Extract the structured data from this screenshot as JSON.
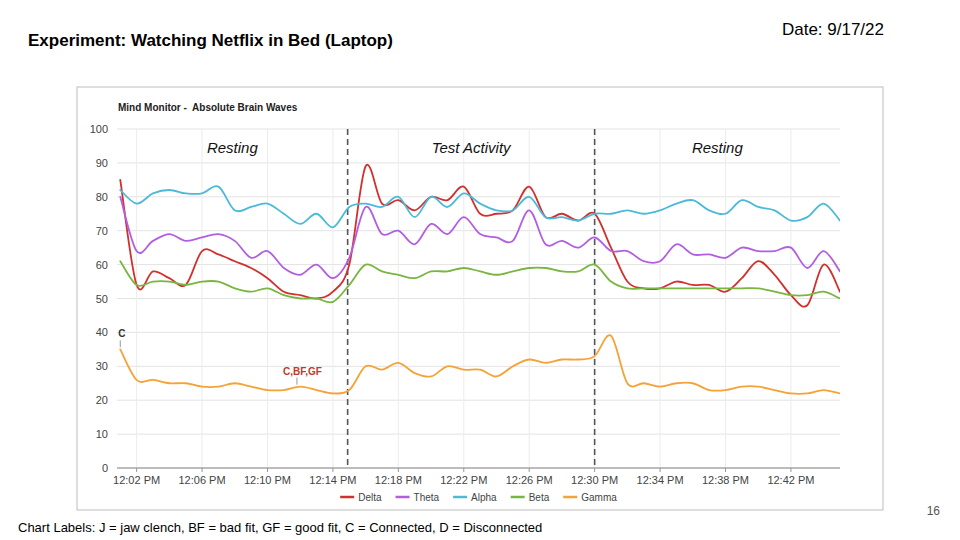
{
  "title": "Experiment: Watching Netflix in Bed (Laptop)",
  "date": "Date: 9/17/22",
  "footer": "Chart Labels: J = jaw clench, BF = bad fit, GF = good fit, C = Connected, D = Disconnected",
  "page_number": "16",
  "chart_data": {
    "type": "line",
    "title": "Mind Monitor -  Absolute Brain Waves",
    "x": [
      1,
      2,
      3,
      4,
      5,
      6,
      7,
      8,
      9,
      10,
      11,
      12,
      13,
      14,
      15,
      16,
      17,
      18,
      19,
      20,
      21,
      22,
      23,
      24,
      25,
      26,
      27,
      28,
      29,
      30,
      31,
      32,
      33,
      34,
      35,
      36,
      37,
      38,
      39,
      40,
      41,
      42,
      43,
      44,
      45
    ],
    "xlim": [
      0.8,
      45
    ],
    "xticks": [
      {
        "value": 2,
        "label": "12:02 PM"
      },
      {
        "value": 6,
        "label": "12:06 PM"
      },
      {
        "value": 10,
        "label": "12:10 PM"
      },
      {
        "value": 14,
        "label": "12:14 PM"
      },
      {
        "value": 18,
        "label": "12:18 PM"
      },
      {
        "value": 22,
        "label": "12:22 PM"
      },
      {
        "value": 26,
        "label": "12:26 PM"
      },
      {
        "value": 30,
        "label": "12:30 PM"
      },
      {
        "value": 34,
        "label": "12:34 PM"
      },
      {
        "value": 38,
        "label": "12:38 PM"
      },
      {
        "value": 42,
        "label": "12:42 PM"
      }
    ],
    "ylim": [
      0,
      100
    ],
    "yticks": [
      0,
      10,
      20,
      30,
      40,
      50,
      60,
      70,
      80,
      90,
      100
    ],
    "grid": true,
    "legend": "bottom",
    "series": [
      {
        "name": "Delta",
        "color": "#d0312d",
        "values": [
          85,
          54,
          58,
          56,
          54,
          64,
          63,
          61,
          59,
          56,
          52,
          51,
          50,
          52,
          60,
          89,
          78,
          79,
          76,
          80,
          79,
          83,
          75,
          75,
          76,
          83,
          74,
          75,
          73,
          75,
          65,
          55,
          53,
          53,
          55,
          54,
          54,
          52,
          56,
          61,
          57,
          51,
          48,
          60,
          52
        ]
      },
      {
        "name": "Theta",
        "color": "#b15fe0",
        "values": [
          80,
          64,
          67,
          69,
          67,
          68,
          69,
          67,
          62,
          64,
          59,
          57,
          60,
          56,
          62,
          77,
          69,
          70,
          66,
          72,
          69,
          74,
          69,
          68,
          67,
          76,
          66,
          67,
          65,
          68,
          64,
          64,
          61,
          61,
          66,
          63,
          63,
          62,
          65,
          64,
          64,
          65,
          59,
          64,
          58
        ]
      },
      {
        "name": "Alpha",
        "color": "#4bbad8",
        "values": [
          82,
          78,
          81,
          82,
          81,
          81,
          83,
          76,
          77,
          78,
          75,
          72,
          75,
          71,
          77,
          78,
          77,
          80,
          74,
          80,
          77,
          81,
          78,
          76,
          76,
          80,
          74,
          74,
          73,
          75,
          75,
          76,
          75,
          76,
          78,
          79,
          76,
          75,
          79,
          77,
          76,
          73,
          74,
          78,
          73
        ]
      },
      {
        "name": "Beta",
        "color": "#79b63f",
        "values": [
          61,
          54,
          55,
          55,
          54,
          55,
          55,
          53,
          52,
          53,
          51,
          50,
          50,
          49,
          54,
          60,
          58,
          57,
          56,
          58,
          58,
          59,
          58,
          57,
          58,
          59,
          59,
          58,
          58,
          60,
          55,
          53,
          53,
          53,
          53,
          53,
          53,
          53,
          53,
          53,
          52,
          51,
          51,
          52,
          50
        ]
      },
      {
        "name": "Gamma",
        "color": "#f5a236",
        "values": [
          35,
          26,
          26,
          25,
          25,
          24,
          24,
          25,
          24,
          23,
          23,
          24,
          23,
          22,
          23,
          30,
          29,
          31,
          28,
          27,
          30,
          29,
          29,
          27,
          30,
          32,
          31,
          32,
          32,
          33,
          39,
          25,
          25,
          24,
          25,
          25,
          23,
          23,
          24,
          24,
          23,
          22,
          22,
          23,
          22
        ]
      }
    ],
    "phases": [
      {
        "label": "Resting",
        "start": 0.8,
        "end": 14.9
      },
      {
        "label": "Test Activity",
        "start": 14.9,
        "end": 30
      },
      {
        "label": "Resting",
        "start": 30,
        "end": 45
      }
    ],
    "annotations": [
      {
        "text": "C",
        "x": 1,
        "y": 35
      },
      {
        "text": "C,BF,GF",
        "x": 11.8,
        "y": 24
      }
    ]
  }
}
